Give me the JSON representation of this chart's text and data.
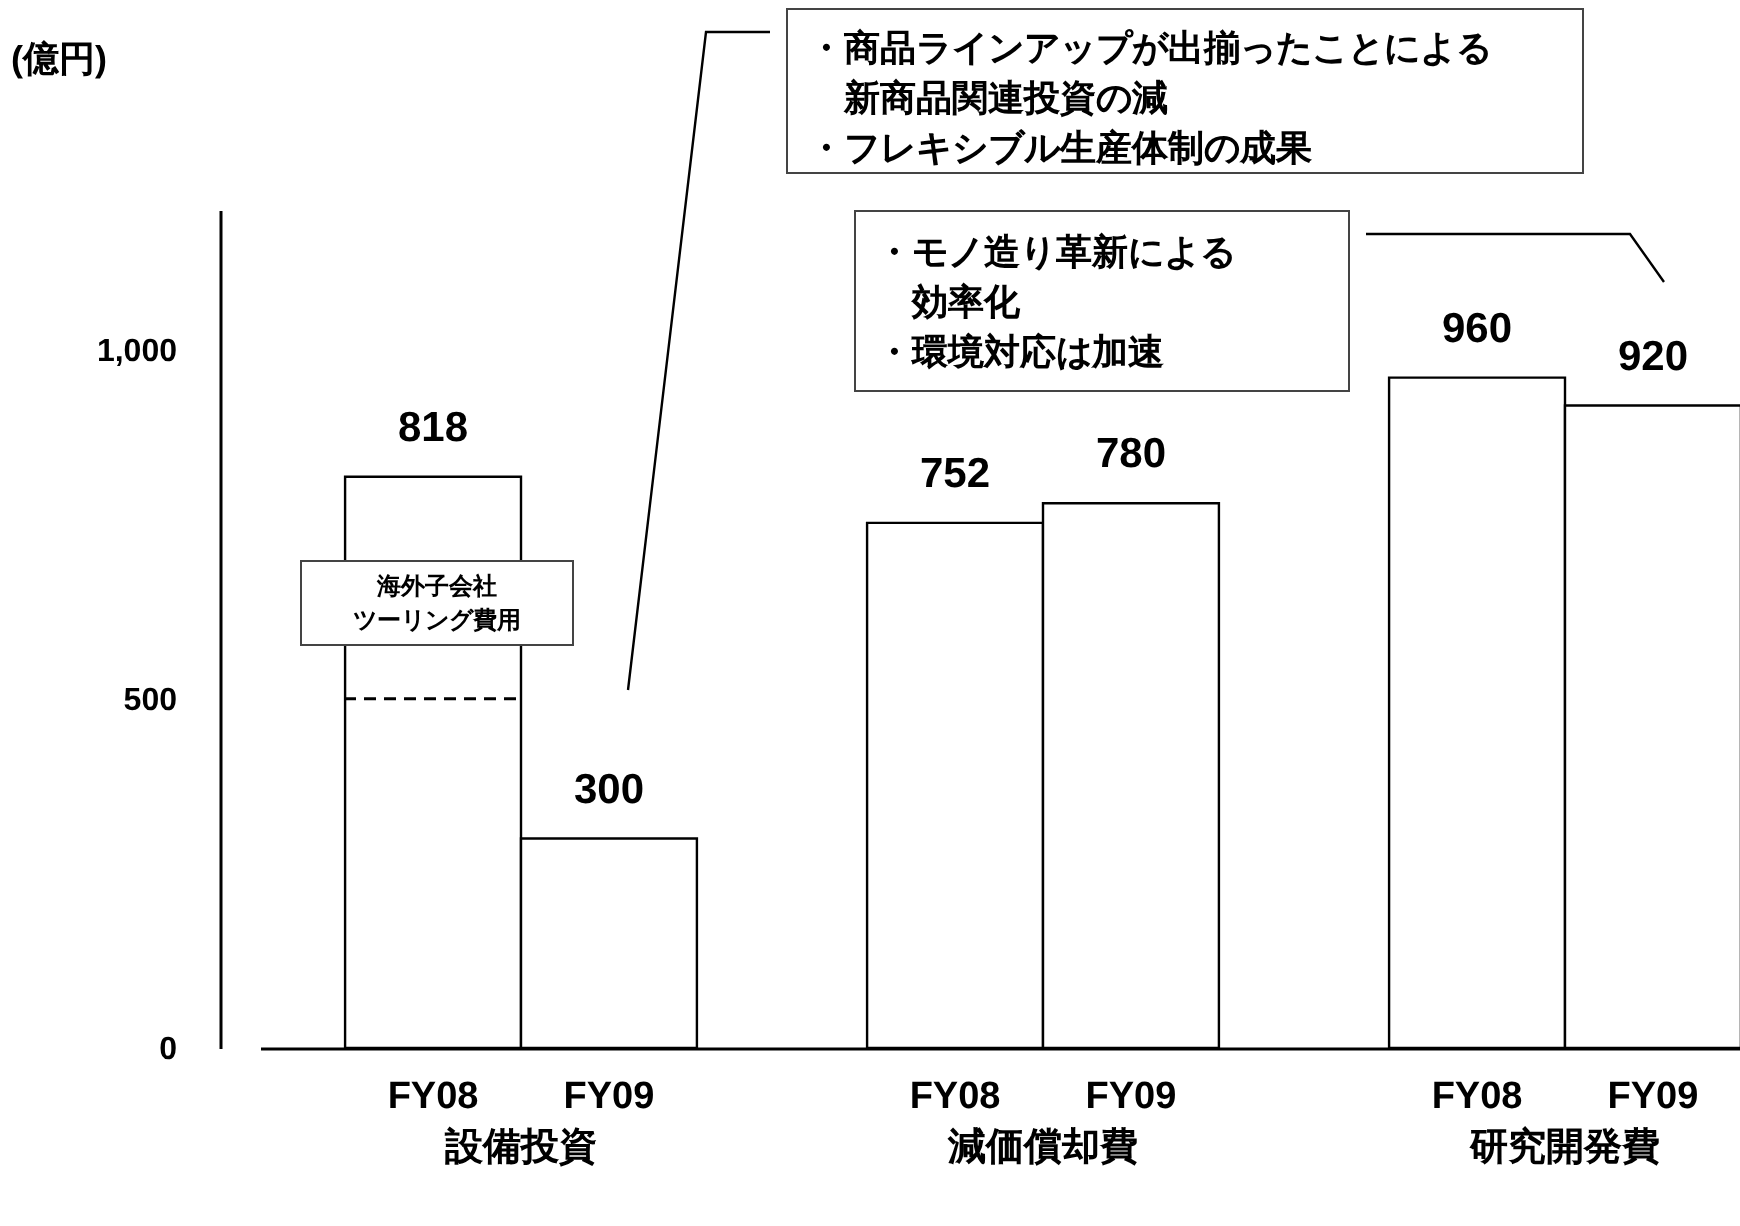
{
  "chart_data": {
    "type": "bar",
    "ylabel": "(億円)",
    "categories": [
      "設備投資",
      "減価償却費",
      "研究開発費"
    ],
    "series": [
      {
        "name": "FY08",
        "color": "#ffffff",
        "values": [
          818,
          752,
          960
        ]
      },
      {
        "name": "FY09",
        "color": "#ffffff",
        "values": [
          300,
          780,
          920
        ]
      }
    ],
    "ylim": [
      0,
      1200
    ],
    "yticks": [
      0,
      500,
      {
        "value": 1000,
        "label": "1,000"
      }
    ],
    "grid": false,
    "legend": false,
    "data_labels": true,
    "ref_lines": [
      {
        "axis": "y",
        "value": 500,
        "line_style": "dashed"
      }
    ],
    "annotations": [
      "・商品ラインアップが出揃ったことによる新商品関連投資の減",
      "・フレキシブル生産体制の成果",
      "・モノ造り革新による効率化",
      "・環境対応は加速",
      "海外子会社",
      "ツーリング費用"
    ]
  }
}
